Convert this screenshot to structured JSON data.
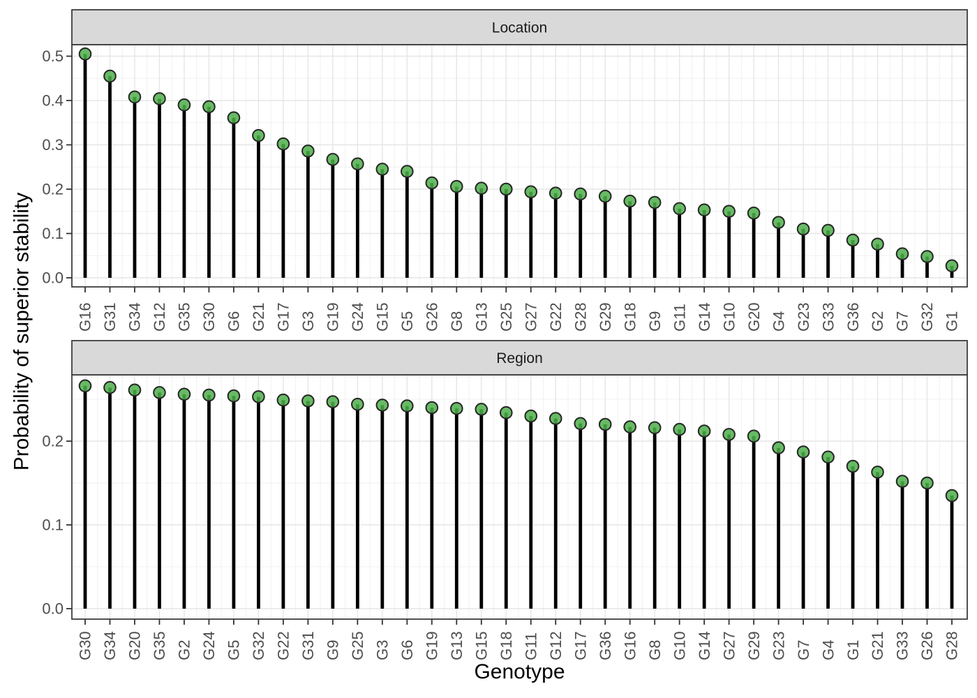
{
  "figure": {
    "y_axis_title": "Probability of superior stability",
    "x_axis_title": "Genotype"
  },
  "chart_data": [
    {
      "type": "lollipop",
      "facet": "Location",
      "xlabel": "Genotype",
      "ylabel": "Probability of superior stability",
      "ylim": [
        0,
        0.525
      ],
      "grid": true,
      "legend": "none",
      "y_ticks": [
        "0.0",
        "0.1",
        "0.2",
        "0.3",
        "0.4",
        "0.5"
      ],
      "categories": [
        "G16",
        "G31",
        "G34",
        "G12",
        "G35",
        "G30",
        "G6",
        "G21",
        "G17",
        "G3",
        "G19",
        "G24",
        "G15",
        "G5",
        "G26",
        "G8",
        "G13",
        "G25",
        "G27",
        "G22",
        "G28",
        "G29",
        "G18",
        "G9",
        "G11",
        "G14",
        "G10",
        "G20",
        "G4",
        "G23",
        "G33",
        "G36",
        "G2",
        "G7",
        "G32",
        "G1"
      ],
      "values": [
        0.505,
        0.455,
        0.408,
        0.404,
        0.39,
        0.386,
        0.361,
        0.321,
        0.302,
        0.286,
        0.267,
        0.257,
        0.245,
        0.24,
        0.214,
        0.206,
        0.202,
        0.2,
        0.194,
        0.191,
        0.189,
        0.184,
        0.173,
        0.17,
        0.156,
        0.153,
        0.15,
        0.146,
        0.125,
        0.11,
        0.107,
        0.085,
        0.076,
        0.054,
        0.048,
        0.027
      ]
    },
    {
      "type": "lollipop",
      "facet": "Region",
      "xlabel": "Genotype",
      "ylabel": "Probability of superior stability",
      "ylim": [
        0,
        0.28
      ],
      "grid": true,
      "legend": "none",
      "y_ticks": [
        "0.0",
        "0.1",
        "0.2"
      ],
      "categories": [
        "G30",
        "G34",
        "G20",
        "G35",
        "G2",
        "G24",
        "G5",
        "G32",
        "G22",
        "G31",
        "G9",
        "G25",
        "G3",
        "G6",
        "G19",
        "G13",
        "G15",
        "G18",
        "G11",
        "G12",
        "G17",
        "G36",
        "G16",
        "G8",
        "G10",
        "G14",
        "G27",
        "G29",
        "G23",
        "G7",
        "G4",
        "G1",
        "G21",
        "G33",
        "G26",
        "G28"
      ],
      "values": [
        0.266,
        0.264,
        0.261,
        0.258,
        0.256,
        0.255,
        0.254,
        0.253,
        0.249,
        0.248,
        0.247,
        0.244,
        0.243,
        0.242,
        0.24,
        0.239,
        0.238,
        0.234,
        0.23,
        0.227,
        0.221,
        0.22,
        0.217,
        0.216,
        0.214,
        0.212,
        0.208,
        0.206,
        0.192,
        0.187,
        0.181,
        0.17,
        0.163,
        0.152,
        0.15,
        0.135
      ]
    }
  ],
  "style": {
    "point_fill": "#4daf4a",
    "point_stroke": "#262626",
    "stem_color": "#000000",
    "strip_bg": "#d9d9d9",
    "strip_border": "#333333",
    "panel_border": "#333333",
    "panel_bg": "#ffffff",
    "grid_major": "#e6e6e6",
    "grid_minor": "#f1f1f1",
    "tick_mark": "#333333",
    "tick_text_color": "#4d4d4d",
    "title_text_color": "#000000"
  }
}
